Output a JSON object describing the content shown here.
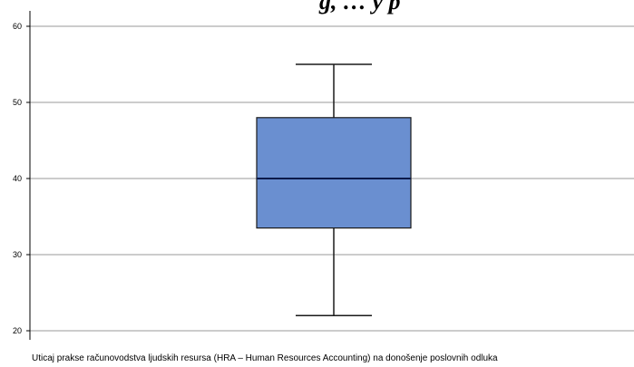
{
  "chart_data": {
    "type": "boxplot",
    "title_fragment": "g, … y p",
    "xlabel": "Uticaj prakse računovodstva ljudskih resursa (HRA – Human Resources Accounting) na donošenje poslovnih odluka",
    "ylabel": "",
    "ylim": [
      19,
      62
    ],
    "yticks": [
      20,
      30,
      40,
      50,
      60
    ],
    "grid": true,
    "box": {
      "min": 22,
      "q1": 33.5,
      "median": 40,
      "q3": 48,
      "max": 55
    },
    "colors": {
      "box_fill": "#6a8fd0",
      "box_stroke": "#1a1a1a",
      "grid": "#9a9a9a"
    }
  }
}
